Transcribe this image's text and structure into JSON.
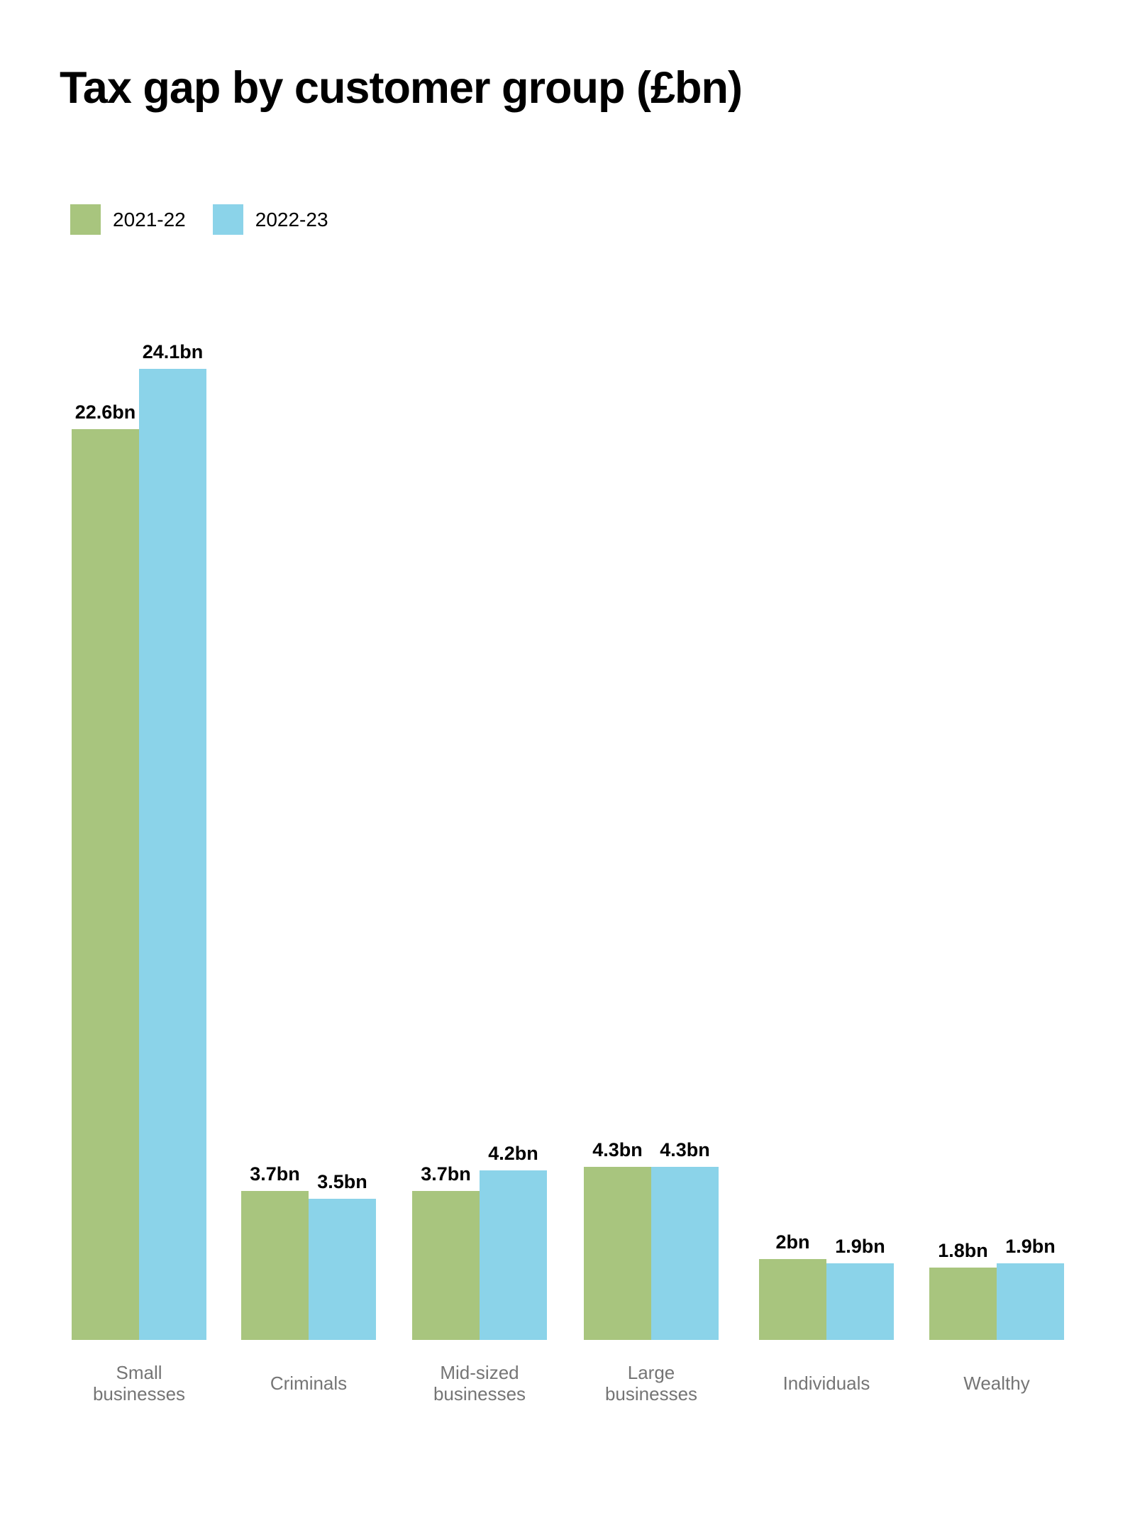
{
  "title": "Tax gap by customer group (£bn)",
  "colors": {
    "series_2021_22": "#a8c57e",
    "series_2022_23": "#8bd3e9",
    "value_label": "#000000",
    "category_label": "#757575",
    "background": "#ffffff"
  },
  "legend": [
    {
      "label": "2021-22",
      "color": "#a8c57e"
    },
    {
      "label": "2022-23",
      "color": "#8bd3e9"
    }
  ],
  "chart_data": {
    "type": "bar",
    "title": "Tax gap by customer group (£bn)",
    "xlabel": "",
    "ylabel": "",
    "categories": [
      "Small businesses",
      "Criminals",
      "Mid-sized businesses",
      "Large businesses",
      "Individuals",
      "Wealthy"
    ],
    "categories_display": [
      [
        "Small",
        "businesses"
      ],
      [
        "Criminals"
      ],
      [
        "Mid-sized",
        "businesses"
      ],
      [
        "Large",
        "businesses"
      ],
      [
        "Individuals"
      ],
      [
        "Wealthy"
      ]
    ],
    "series": [
      {
        "name": "2021-22",
        "color": "#a8c57e",
        "values": [
          22.6,
          3.7,
          3.7,
          4.3,
          2,
          1.8
        ],
        "labels": [
          "22.6bn",
          "3.7bn",
          "3.7bn",
          "4.3bn",
          "2bn",
          "1.8bn"
        ]
      },
      {
        "name": "2022-23",
        "color": "#8bd3e9",
        "values": [
          24.1,
          3.5,
          4.2,
          4.3,
          1.9,
          1.9
        ],
        "labels": [
          "24.1bn",
          "3.5bn",
          "4.2bn",
          "4.3bn",
          "1.9bn",
          "1.9bn"
        ]
      }
    ],
    "value_suffix": "bn",
    "ylim": [
      0,
      24.1
    ],
    "grid": false,
    "axes_visible": false,
    "legend_position": "top-left"
  }
}
